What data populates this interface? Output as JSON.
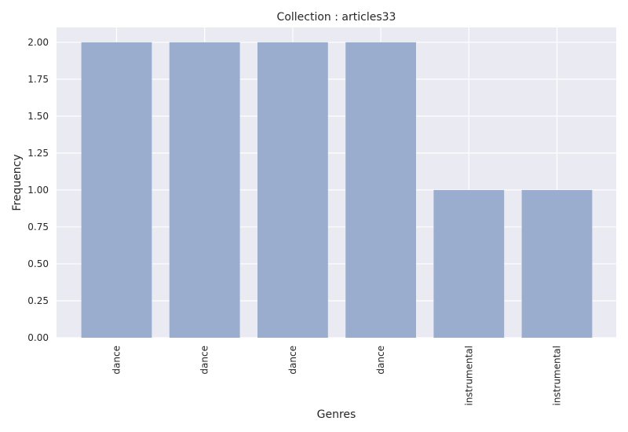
{
  "chart_data": {
    "type": "bar",
    "title": "Collection : articles33",
    "xlabel": "Genres",
    "ylabel": "Frequency",
    "categories": [
      "dance",
      "dance",
      "dance",
      "dance",
      "instrumental",
      "instrumental"
    ],
    "values": [
      2,
      2,
      2,
      2,
      1,
      1
    ],
    "ylim": [
      0,
      2.1
    ],
    "yticks": [
      "0.00",
      "0.25",
      "0.50",
      "0.75",
      "1.00",
      "1.25",
      "1.50",
      "1.75",
      "2.00"
    ],
    "grid": true,
    "x_tick_rotation": "vertical",
    "colors": {
      "bar": "#9badcf",
      "plot_background": "#eaeaf2",
      "grid": "#ffffff",
      "text": "#262626"
    }
  }
}
